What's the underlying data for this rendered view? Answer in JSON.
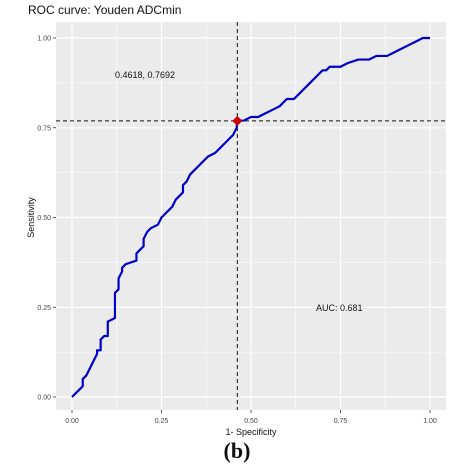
{
  "caption": "(b)",
  "chart_data": {
    "type": "line",
    "title": "ROC curve: Youden ADCmin",
    "xlabel": "1- Specificity",
    "ylabel": "Sensitivity",
    "xlim": [
      0,
      1
    ],
    "ylim": [
      0,
      1
    ],
    "x_ticks": [
      "0.00",
      "0.25",
      "0.50",
      "0.75",
      "1.00"
    ],
    "y_ticks": [
      "0.00",
      "0.25",
      "0.50",
      "0.75",
      "1.00"
    ],
    "grid": true,
    "series_color": "#0000cc",
    "marker_color": "#cc0000",
    "panel_color": "#ebebeb",
    "grid_color": "#ffffff",
    "cutoff": {
      "x": 0.4618,
      "y": 0.7692
    },
    "cutoff_label": "0.4618, 0.7692",
    "auc_label": "AUC: 0.681",
    "roc_points": [
      [
        0.0,
        0.0
      ],
      [
        0.01,
        0.01
      ],
      [
        0.02,
        0.02
      ],
      [
        0.03,
        0.03
      ],
      [
        0.03,
        0.05
      ],
      [
        0.04,
        0.06
      ],
      [
        0.05,
        0.08
      ],
      [
        0.06,
        0.1
      ],
      [
        0.07,
        0.12
      ],
      [
        0.07,
        0.13
      ],
      [
        0.08,
        0.13
      ],
      [
        0.08,
        0.16
      ],
      [
        0.09,
        0.17
      ],
      [
        0.1,
        0.17
      ],
      [
        0.1,
        0.21
      ],
      [
        0.12,
        0.22
      ],
      [
        0.12,
        0.29
      ],
      [
        0.13,
        0.3
      ],
      [
        0.13,
        0.33
      ],
      [
        0.14,
        0.35
      ],
      [
        0.14,
        0.36
      ],
      [
        0.15,
        0.37
      ],
      [
        0.18,
        0.38
      ],
      [
        0.18,
        0.4
      ],
      [
        0.19,
        0.41
      ],
      [
        0.2,
        0.42
      ],
      [
        0.2,
        0.44
      ],
      [
        0.21,
        0.46
      ],
      [
        0.22,
        0.47
      ],
      [
        0.24,
        0.48
      ],
      [
        0.25,
        0.5
      ],
      [
        0.26,
        0.51
      ],
      [
        0.27,
        0.52
      ],
      [
        0.28,
        0.53
      ],
      [
        0.29,
        0.55
      ],
      [
        0.3,
        0.56
      ],
      [
        0.31,
        0.57
      ],
      [
        0.31,
        0.59
      ],
      [
        0.32,
        0.6
      ],
      [
        0.33,
        0.62
      ],
      [
        0.34,
        0.63
      ],
      [
        0.35,
        0.64
      ],
      [
        0.36,
        0.65
      ],
      [
        0.37,
        0.66
      ],
      [
        0.38,
        0.67
      ],
      [
        0.4,
        0.68
      ],
      [
        0.41,
        0.69
      ],
      [
        0.42,
        0.7
      ],
      [
        0.43,
        0.71
      ],
      [
        0.44,
        0.72
      ],
      [
        0.45,
        0.73
      ],
      [
        0.46,
        0.75
      ],
      [
        0.4618,
        0.7692
      ],
      [
        0.48,
        0.77
      ],
      [
        0.5,
        0.78
      ],
      [
        0.52,
        0.78
      ],
      [
        0.54,
        0.79
      ],
      [
        0.56,
        0.8
      ],
      [
        0.58,
        0.81
      ],
      [
        0.59,
        0.82
      ],
      [
        0.6,
        0.83
      ],
      [
        0.62,
        0.83
      ],
      [
        0.63,
        0.84
      ],
      [
        0.64,
        0.85
      ],
      [
        0.65,
        0.86
      ],
      [
        0.66,
        0.87
      ],
      [
        0.67,
        0.88
      ],
      [
        0.68,
        0.89
      ],
      [
        0.69,
        0.9
      ],
      [
        0.7,
        0.91
      ],
      [
        0.71,
        0.91
      ],
      [
        0.72,
        0.92
      ],
      [
        0.75,
        0.92
      ],
      [
        0.77,
        0.93
      ],
      [
        0.8,
        0.94
      ],
      [
        0.83,
        0.94
      ],
      [
        0.85,
        0.95
      ],
      [
        0.88,
        0.95
      ],
      [
        0.9,
        0.96
      ],
      [
        0.92,
        0.97
      ],
      [
        0.94,
        0.98
      ],
      [
        0.96,
        0.99
      ],
      [
        0.98,
        1.0
      ],
      [
        1.0,
        1.0
      ]
    ]
  }
}
